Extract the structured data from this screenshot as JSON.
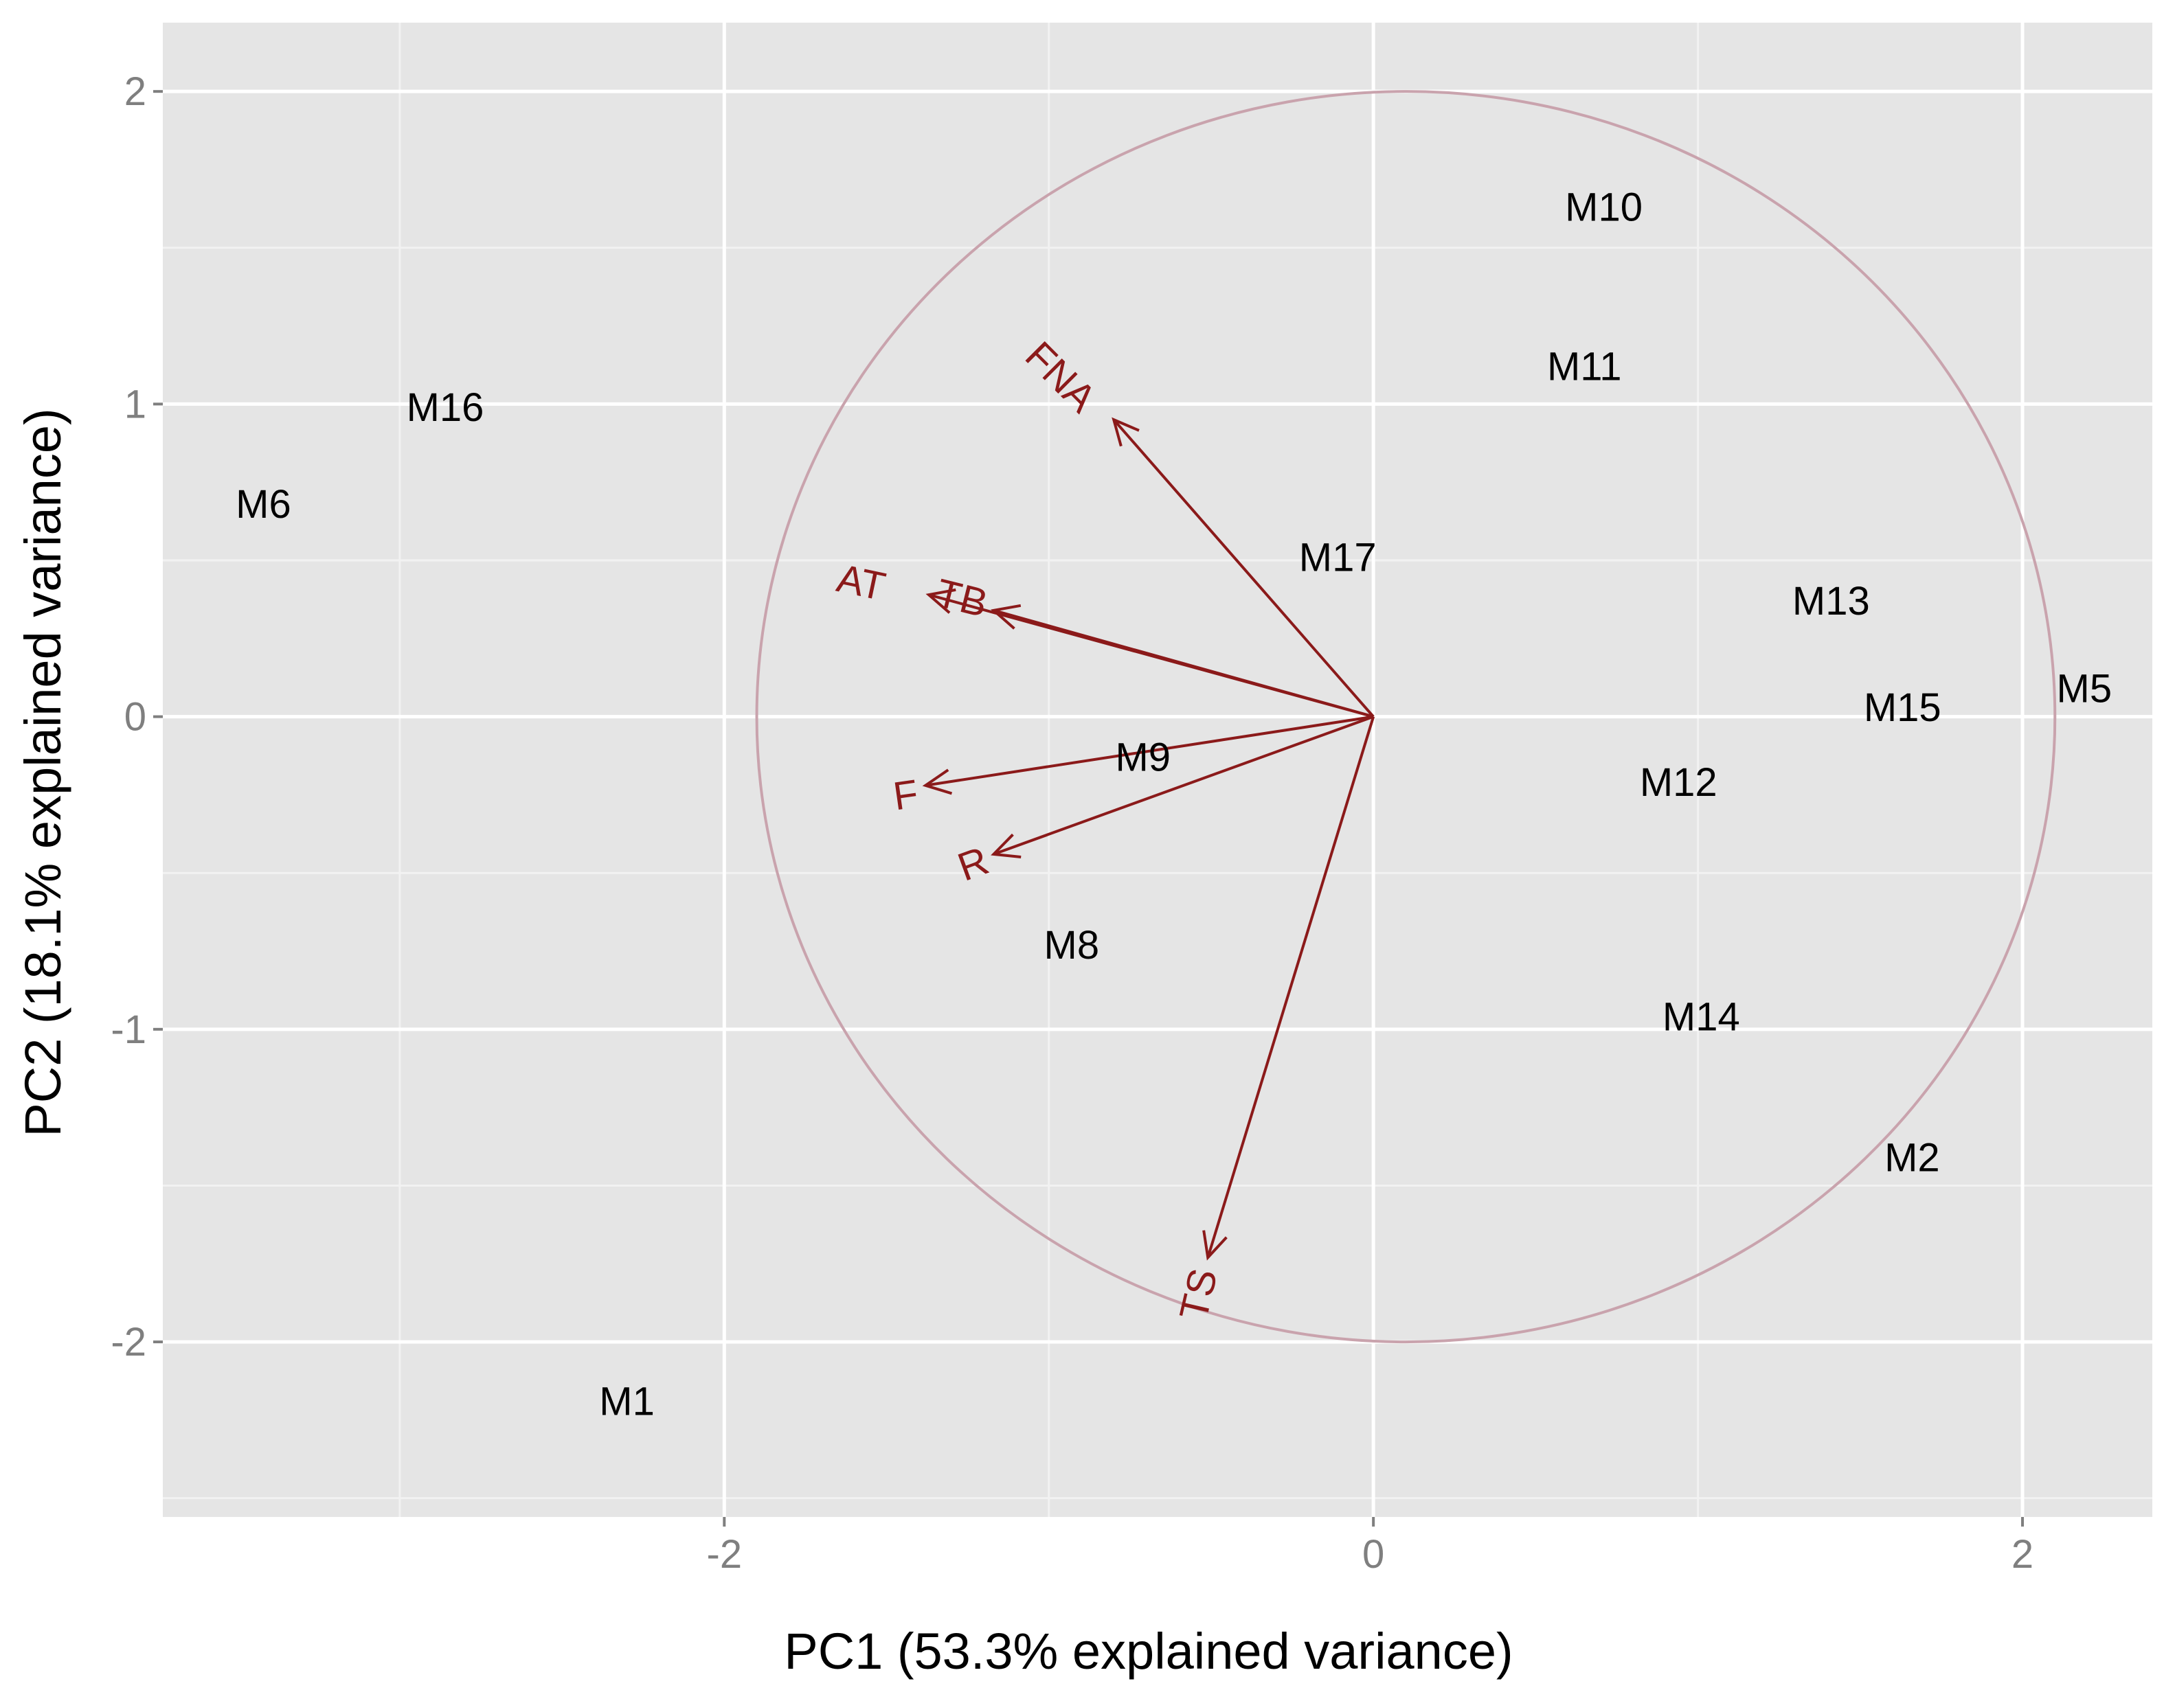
{
  "chart_data": {
    "type": "scatter",
    "subtype": "pca-biplot",
    "xlabel": "PC1 (53.3% explained variance)",
    "ylabel": "PC2 (18.1% explained variance)",
    "xlim": [
      -3.73,
      2.4
    ],
    "ylim": [
      -2.56,
      2.22
    ],
    "xticks": [
      -2,
      0,
      2
    ],
    "xtick_labels": [
      "-2",
      "0",
      "2"
    ],
    "yticks": [
      -2,
      -1,
      0,
      1,
      2
    ],
    "ytick_labels": [
      "-2",
      "-1",
      "0",
      "1",
      "2"
    ],
    "grid": true,
    "legend": "none",
    "colors": {
      "panel_bg": "#e5e5e5",
      "grid_major": "#ffffff",
      "grid_minor": "#f2f2f2",
      "arrow": "#8b1a1a",
      "circle": "#c9a3ad",
      "point_label": "#000000",
      "tick_label": "#7f7f7f"
    },
    "points": [
      {
        "label": "M1",
        "x": -2.3,
        "y": -2.2
      },
      {
        "label": "M2",
        "x": 1.66,
        "y": -1.42
      },
      {
        "label": "M5",
        "x": 2.19,
        "y": 0.08
      },
      {
        "label": "M6",
        "x": -3.42,
        "y": 0.67
      },
      {
        "label": "M8",
        "x": -0.93,
        "y": -0.74
      },
      {
        "label": "M9",
        "x": -0.71,
        "y": -0.14
      },
      {
        "label": "M10",
        "x": 0.71,
        "y": 1.62
      },
      {
        "label": "M11",
        "x": 0.65,
        "y": 1.11
      },
      {
        "label": "M12",
        "x": 0.94,
        "y": -0.22
      },
      {
        "label": "M13",
        "x": 1.41,
        "y": 0.36
      },
      {
        "label": "M14",
        "x": 1.01,
        "y": -0.97
      },
      {
        "label": "M15",
        "x": 1.63,
        "y": 0.02
      },
      {
        "label": "M16",
        "x": -2.86,
        "y": 0.98
      },
      {
        "label": "M17",
        "x": -0.11,
        "y": 0.5
      }
    ],
    "loadings": [
      {
        "label": "FNA",
        "x": -0.8,
        "y": 0.95,
        "label_x": -0.97,
        "label_y": 1.08,
        "label_angle": 45
      },
      {
        "label": "AT",
        "x": -1.37,
        "y": 0.39,
        "label_x": -1.58,
        "label_y": 0.42,
        "label_angle": 12
      },
      {
        "label": "TB",
        "x": -1.17,
        "y": 0.34,
        "label_x": -1.27,
        "label_y": 0.37,
        "label_angle": 14
      },
      {
        "label": "F",
        "x": -1.38,
        "y": -0.22,
        "label_x": -1.44,
        "label_y": -0.26,
        "label_angle": -8
      },
      {
        "label": "R",
        "x": -1.17,
        "y": -0.44,
        "label_x": -1.23,
        "label_y": -0.48,
        "label_angle": -20
      },
      {
        "label": "TS",
        "x": -0.51,
        "y": -1.73,
        "label_x": -0.53,
        "label_y": -1.85,
        "label_angle": -77
      }
    ],
    "circle": {
      "center_x": 0.1,
      "center_y": 0,
      "radius": 2.0
    }
  }
}
